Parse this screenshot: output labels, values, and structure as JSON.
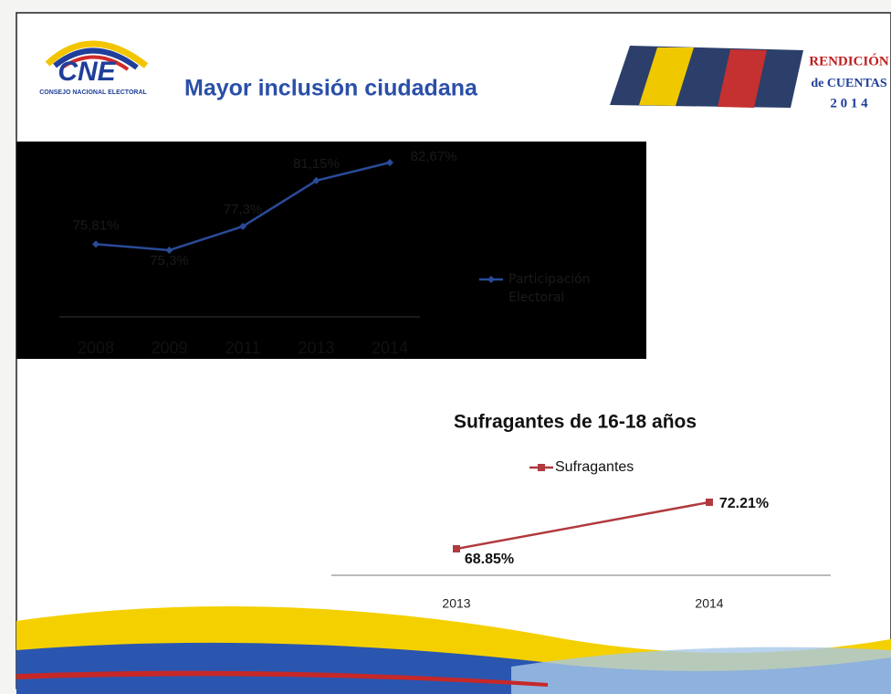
{
  "header": {
    "logo": "CNE",
    "logo_subtitle": "CONSEJO NACIONAL ELECTORAL",
    "title": "Mayor inclusión ciudadana",
    "badge": [
      "RENDICIÓN",
      "de CUENTAS",
      "2 0 1 4"
    ]
  },
  "chart_data": [
    {
      "type": "line",
      "categories": [
        "2008",
        "2009",
        "2011",
        "2013",
        "2014"
      ],
      "series": [
        {
          "name": "Participación Electoral",
          "color": "#2a4a9a",
          "values": [
            75.81,
            75.3,
            77.3,
            81.15,
            82.67
          ],
          "value_labels": [
            "75,81%",
            "75,3%",
            "77,3%",
            "81,15%",
            "82,67%"
          ]
        }
      ]
    },
    {
      "type": "line",
      "title": "Sufragantes de 16-18 años",
      "categories": [
        "2013",
        "2014"
      ],
      "series": [
        {
          "name": "Sufragantes",
          "color": "#b03a3e",
          "values": [
            68.85,
            72.21
          ],
          "value_labels": [
            "68.85%",
            "72.21%"
          ]
        }
      ]
    }
  ]
}
